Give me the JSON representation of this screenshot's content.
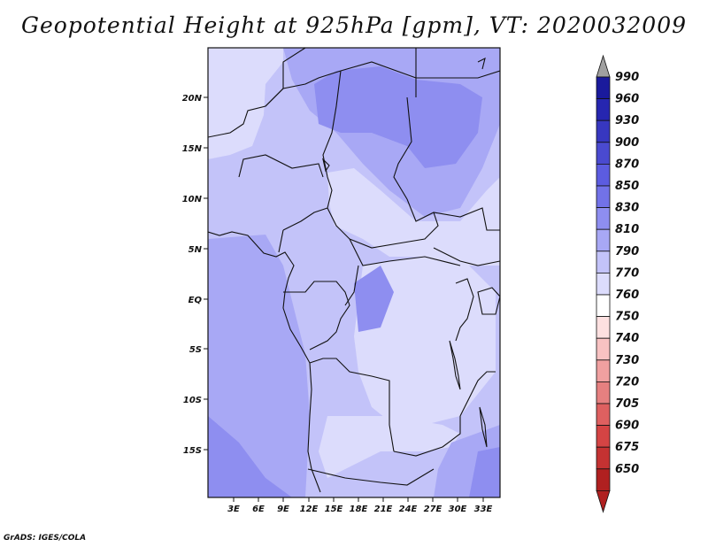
{
  "title": "Geopotential Height at 925hPa [gpm], VT: 2020032009",
  "footer": "GrADS: IGES/COLA",
  "map": {
    "lat_labels": [
      "20N",
      "15N",
      "10N",
      "5N",
      "EQ",
      "5S",
      "10S",
      "15S"
    ],
    "lon_labels": [
      "3E",
      "6E",
      "9E",
      "12E",
      "15E",
      "18E",
      "21E",
      "24E",
      "27E",
      "30E",
      "33E"
    ]
  },
  "colorbar": {
    "levels": [
      "990",
      "960",
      "930",
      "900",
      "870",
      "850",
      "830",
      "810",
      "790",
      "770",
      "760",
      "750",
      "740",
      "730",
      "720",
      "705",
      "690",
      "675",
      "650"
    ],
    "colors": [
      "#1a1a9c",
      "#2626b0",
      "#3737c0",
      "#4a4ad0",
      "#5c5ce0",
      "#7272e8",
      "#8e8ef0",
      "#a8a8f5",
      "#c3c3f9",
      "#dcdcfc",
      "#ffffff",
      "#fde0e0",
      "#f8c2c2",
      "#f0a0a0",
      "#e68080",
      "#de6060",
      "#d44444",
      "#c43232",
      "#b02020"
    ],
    "top_arrow_color": "#a0a0a0"
  },
  "field_colors": {
    "c_770": "#dcdcfc",
    "c_790": "#c3c3f9",
    "c_810": "#a8a8f5",
    "c_830": "#8e8ef0"
  }
}
